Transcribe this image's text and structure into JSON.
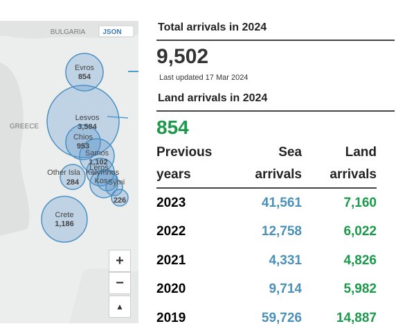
{
  "map": {
    "country_labels": [
      "BULGARIA",
      "GREECE"
    ],
    "json_button": "JSON",
    "points": [
      {
        "name": "Evros",
        "value": "854"
      },
      {
        "name": "Lesvos",
        "value": "3,584"
      },
      {
        "name": "Chios",
        "value": "953"
      },
      {
        "name": "Samos",
        "value": "1,102"
      },
      {
        "name": "Leros"
      },
      {
        "name": "Kalymnos"
      },
      {
        "name": "Kos"
      },
      {
        "name": "Symi"
      },
      {
        "value": "226"
      },
      {
        "name": "Other Isla",
        "value": "284"
      },
      {
        "name": "Crete",
        "value": "1,186"
      }
    ]
  },
  "summary": {
    "total_title": "Total arrivals in 2024",
    "total_value": "9,502",
    "updated": "Last updated 17 Mar 2024",
    "land_title": "Land arrivals in 2024",
    "land_value": "854"
  },
  "table": {
    "header": [
      "Previous years",
      "Sea arrivals",
      "Land arrivals"
    ],
    "rows": [
      [
        "2023",
        "41,561",
        "7,160"
      ],
      [
        "2022",
        "12,758",
        "6,022"
      ],
      [
        "2021",
        "4,331",
        "4,826"
      ],
      [
        "2020",
        "9,714",
        "5,982"
      ],
      [
        "2019",
        "59,726",
        "14,887"
      ]
    ]
  }
}
